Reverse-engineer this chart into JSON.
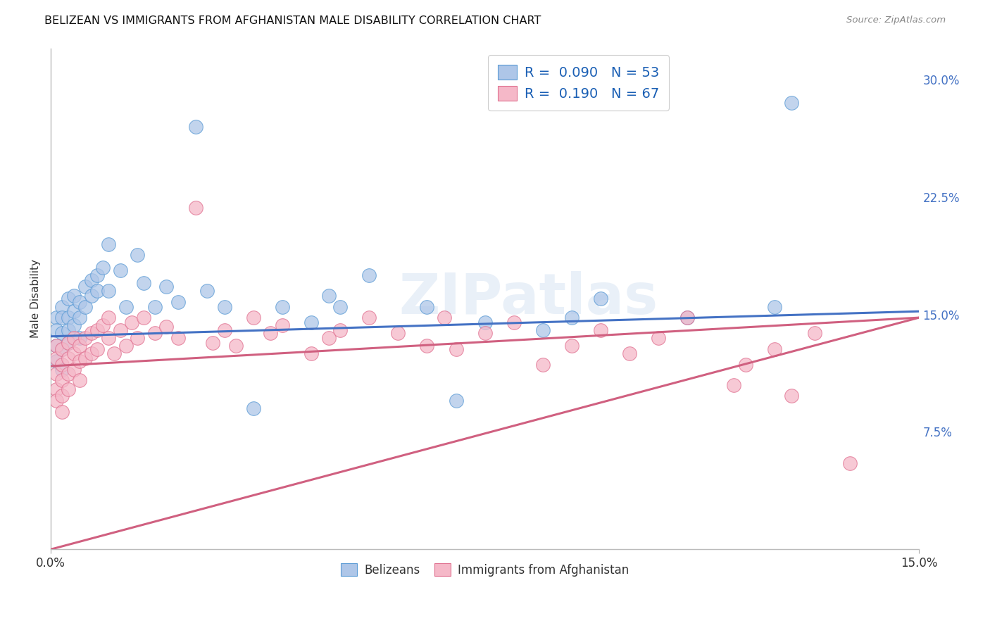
{
  "title": "BELIZEAN VS IMMIGRANTS FROM AFGHANISTAN MALE DISABILITY CORRELATION CHART",
  "source": "Source: ZipAtlas.com",
  "ylabel": "Male Disability",
  "xlim": [
    0.0,
    0.15
  ],
  "ylim": [
    0.0,
    0.32
  ],
  "blue_R": 0.09,
  "blue_N": 53,
  "pink_R": 0.19,
  "pink_N": 67,
  "blue_face_color": "#aec6e8",
  "pink_face_color": "#f5b8c8",
  "blue_edge_color": "#5b9bd5",
  "pink_edge_color": "#e07090",
  "blue_line_color": "#4472c4",
  "pink_line_color": "#d06080",
  "watermark": "ZIPatlas",
  "background_color": "#ffffff",
  "grid_color": "#cccccc",
  "blue_trend_x0": 0.0,
  "blue_trend_y0": 0.136,
  "blue_trend_x1": 0.15,
  "blue_trend_y1": 0.152,
  "pink_trend_x0": 0.0,
  "pink_trend_y0": 0.117,
  "pink_trend_x1": 0.15,
  "pink_trend_y1": 0.148,
  "blue_x": [
    0.001,
    0.001,
    0.001,
    0.001,
    0.002,
    0.002,
    0.002,
    0.002,
    0.002,
    0.003,
    0.003,
    0.003,
    0.003,
    0.004,
    0.004,
    0.004,
    0.005,
    0.005,
    0.005,
    0.006,
    0.006,
    0.007,
    0.007,
    0.008,
    0.008,
    0.009,
    0.01,
    0.01,
    0.012,
    0.013,
    0.015,
    0.016,
    0.018,
    0.02,
    0.022,
    0.025,
    0.027,
    0.03,
    0.035,
    0.04,
    0.045,
    0.048,
    0.05,
    0.055,
    0.065,
    0.07,
    0.075,
    0.085,
    0.09,
    0.095,
    0.11,
    0.125,
    0.128
  ],
  "blue_y": [
    0.148,
    0.14,
    0.13,
    0.12,
    0.155,
    0.148,
    0.138,
    0.128,
    0.115,
    0.16,
    0.148,
    0.14,
    0.132,
    0.162,
    0.152,
    0.143,
    0.158,
    0.148,
    0.135,
    0.168,
    0.155,
    0.172,
    0.162,
    0.175,
    0.165,
    0.18,
    0.195,
    0.165,
    0.178,
    0.155,
    0.188,
    0.17,
    0.155,
    0.168,
    0.158,
    0.27,
    0.165,
    0.155,
    0.09,
    0.155,
    0.145,
    0.162,
    0.155,
    0.175,
    0.155,
    0.095,
    0.145,
    0.14,
    0.148,
    0.16,
    0.148,
    0.155,
    0.285
  ],
  "pink_x": [
    0.001,
    0.001,
    0.001,
    0.001,
    0.001,
    0.002,
    0.002,
    0.002,
    0.002,
    0.002,
    0.003,
    0.003,
    0.003,
    0.003,
    0.004,
    0.004,
    0.004,
    0.005,
    0.005,
    0.005,
    0.006,
    0.006,
    0.007,
    0.007,
    0.008,
    0.008,
    0.009,
    0.01,
    0.01,
    0.011,
    0.012,
    0.013,
    0.014,
    0.015,
    0.016,
    0.018,
    0.02,
    0.022,
    0.025,
    0.028,
    0.03,
    0.032,
    0.035,
    0.038,
    0.04,
    0.045,
    0.048,
    0.05,
    0.055,
    0.06,
    0.065,
    0.068,
    0.07,
    0.075,
    0.08,
    0.085,
    0.09,
    0.095,
    0.1,
    0.105,
    0.11,
    0.118,
    0.12,
    0.125,
    0.128,
    0.132,
    0.138
  ],
  "pink_y": [
    0.13,
    0.122,
    0.112,
    0.102,
    0.095,
    0.128,
    0.118,
    0.108,
    0.098,
    0.088,
    0.132,
    0.122,
    0.112,
    0.102,
    0.135,
    0.125,
    0.115,
    0.13,
    0.12,
    0.108,
    0.135,
    0.122,
    0.138,
    0.125,
    0.14,
    0.128,
    0.143,
    0.148,
    0.135,
    0.125,
    0.14,
    0.13,
    0.145,
    0.135,
    0.148,
    0.138,
    0.142,
    0.135,
    0.218,
    0.132,
    0.14,
    0.13,
    0.148,
    0.138,
    0.143,
    0.125,
    0.135,
    0.14,
    0.148,
    0.138,
    0.13,
    0.148,
    0.128,
    0.138,
    0.145,
    0.118,
    0.13,
    0.14,
    0.125,
    0.135,
    0.148,
    0.105,
    0.118,
    0.128,
    0.098,
    0.138,
    0.055
  ],
  "yticks": [
    0.075,
    0.15,
    0.225,
    0.3
  ],
  "ytick_labels": [
    "7.5%",
    "15.0%",
    "22.5%",
    "30.0%"
  ]
}
